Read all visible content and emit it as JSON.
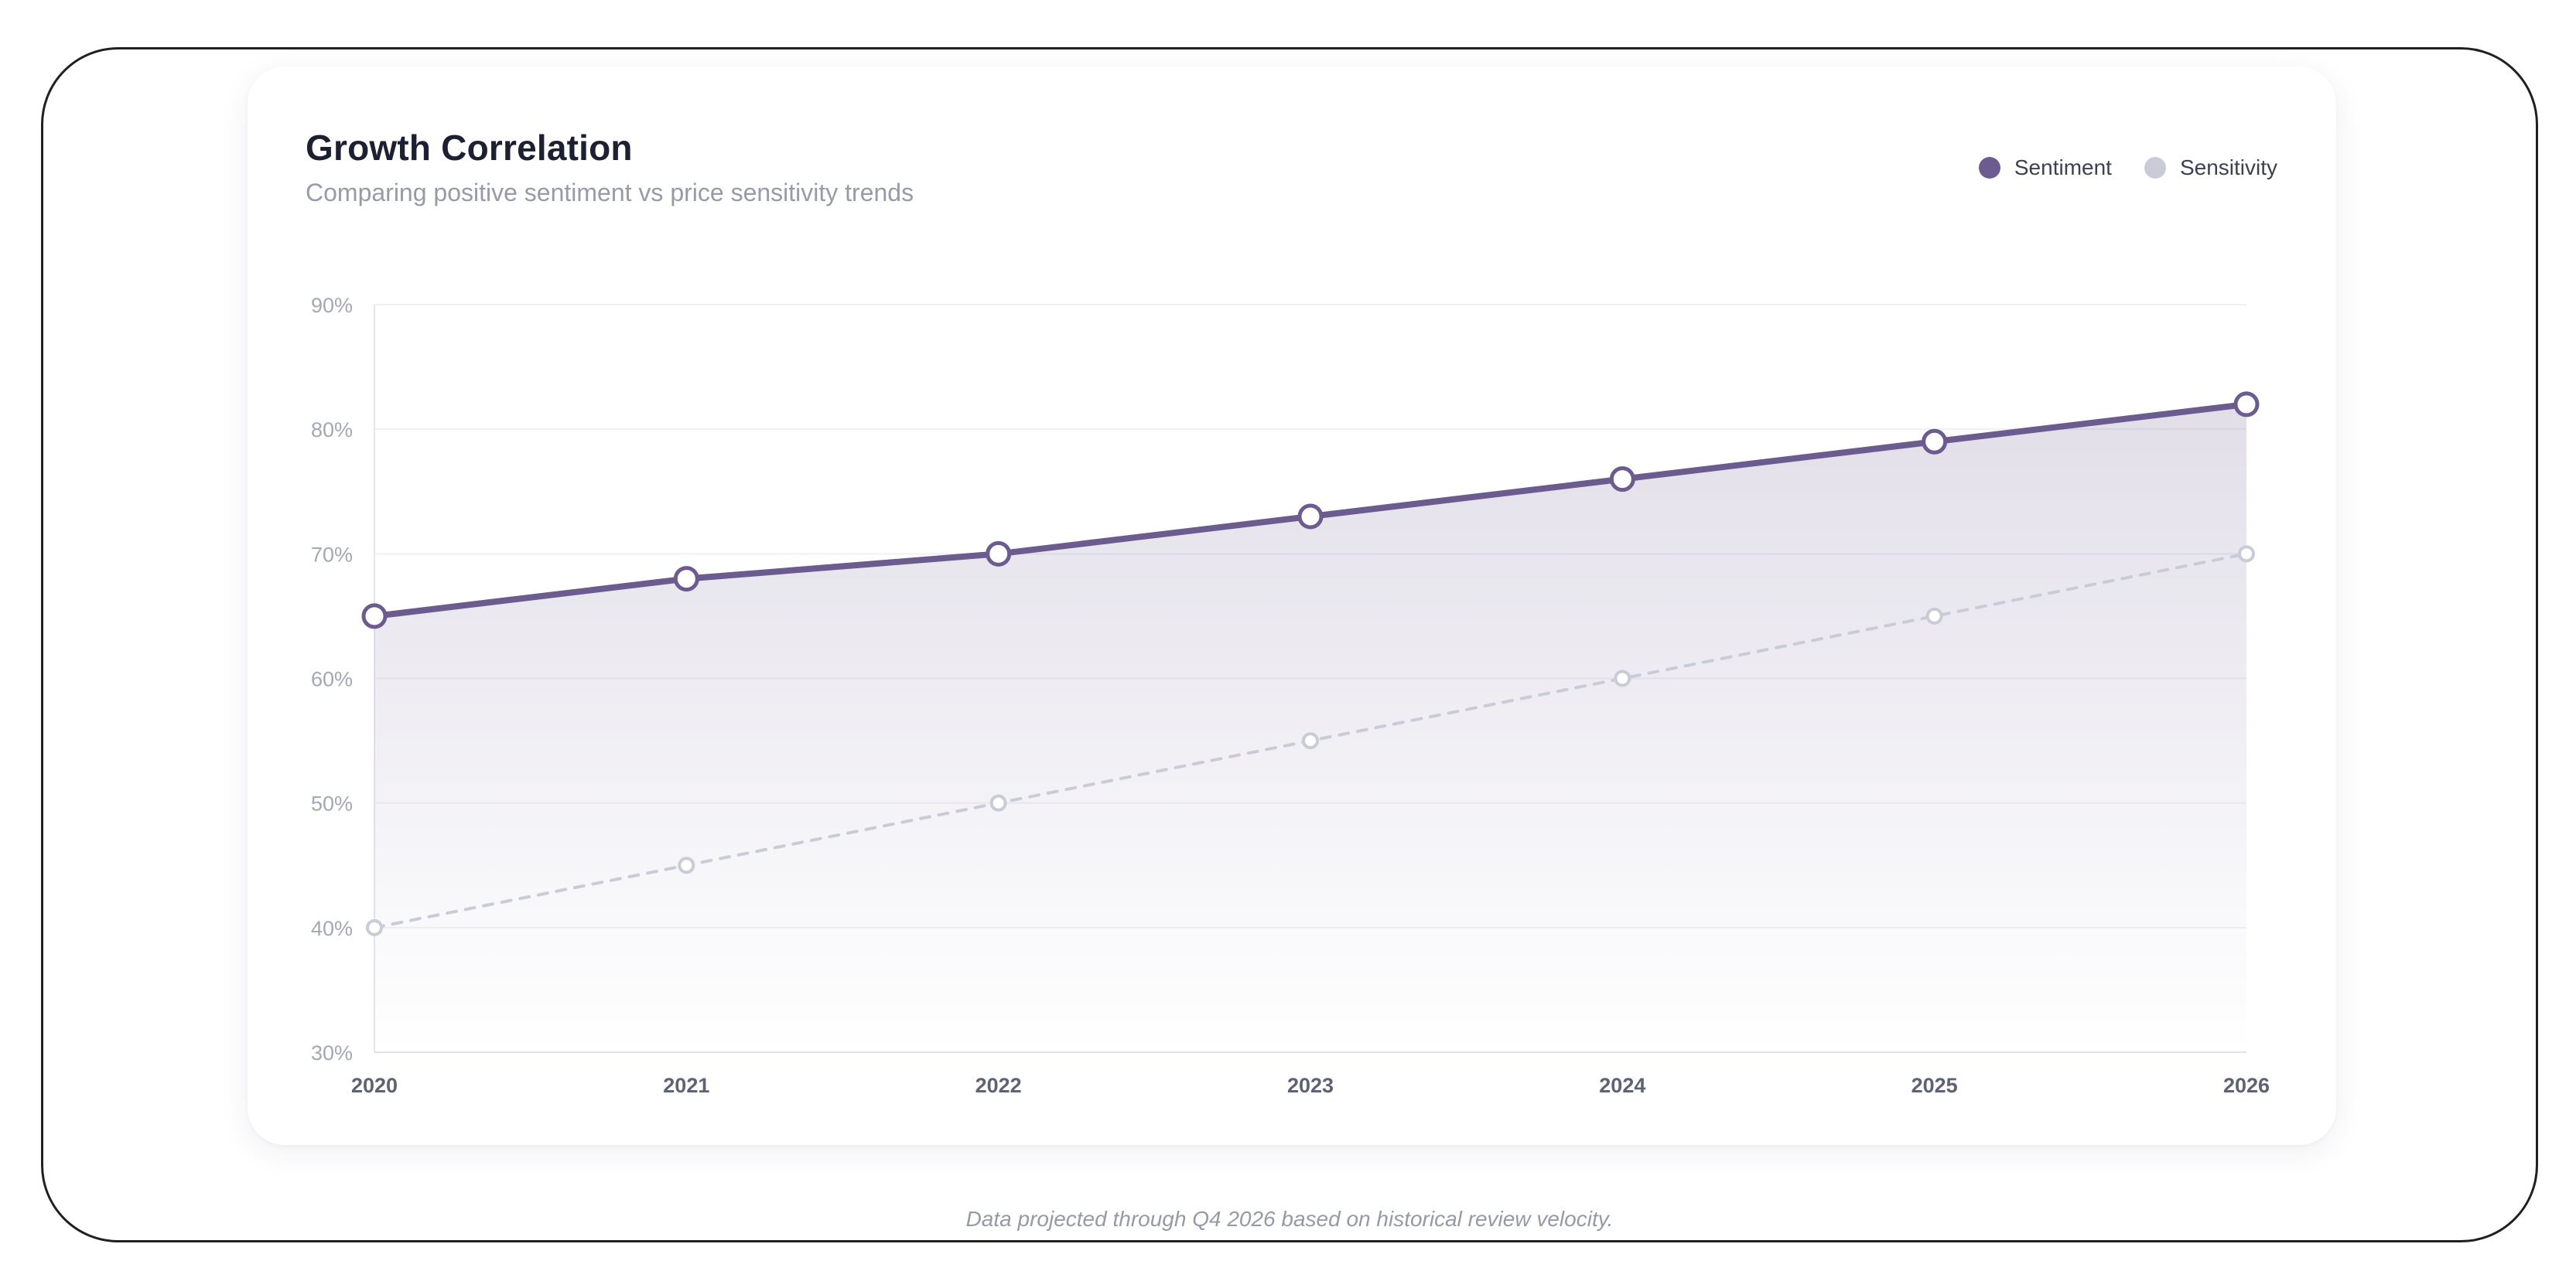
{
  "card": {
    "title": "Growth Correlation",
    "subtitle": "Comparing positive sentiment vs price sensitivity trends"
  },
  "footnote": "Data projected through Q4 2026 based on historical review velocity.",
  "colors": {
    "sentiment": "#6b5b8e",
    "sensitivity": "#c9ccd6",
    "tick_text": "#a4a7b6",
    "x_tick_text": "#5d6274",
    "grid": "#f1f1f4"
  },
  "chart_data": {
    "type": "line",
    "title": "Growth Correlation",
    "subtitle": "Comparing positive sentiment vs price sensitivity trends",
    "x": [
      "2020",
      "2021",
      "2022",
      "2023",
      "2024",
      "2025",
      "2026"
    ],
    "ylim": [
      30,
      90
    ],
    "yticks": [
      30,
      40,
      50,
      60,
      70,
      80,
      90
    ],
    "ytick_labels": [
      "30%",
      "40%",
      "50%",
      "60%",
      "70%",
      "80%",
      "90%"
    ],
    "xlabel": "",
    "ylabel": "",
    "grid": true,
    "legend_position": "top-right",
    "series": [
      {
        "name": "Sentiment",
        "values": [
          65,
          68,
          70,
          73,
          76,
          79,
          82
        ],
        "style": "solid-area"
      },
      {
        "name": "Sensitivity",
        "values": [
          40,
          45,
          50,
          55,
          60,
          65,
          70
        ],
        "style": "dashed"
      }
    ]
  }
}
